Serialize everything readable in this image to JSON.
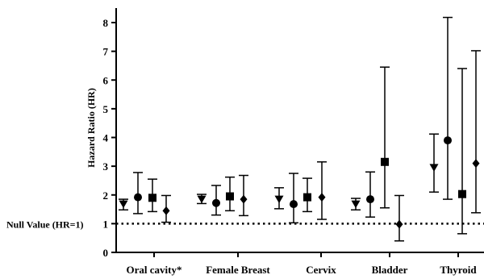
{
  "chart_data": {
    "type": "scatter",
    "ylabel": "Hazard Ratio (HR)",
    "xlabel": "",
    "ylim": [
      0,
      8.5
    ],
    "yticks": [
      0,
      1,
      2,
      3,
      4,
      5,
      6,
      7,
      8
    ],
    "categories": [
      "Oral cavity*",
      "Female Breast",
      "Cervix",
      "Bladder",
      "Thyroid"
    ],
    "reference_line": {
      "value": 1,
      "label": "Null Value (HR=1)",
      "style": "dotted"
    },
    "grid": false,
    "legend": "none",
    "series": [
      {
        "marker": "triangle-down",
        "points": [
          {
            "category": "Oral cavity*",
            "hr": 1.68,
            "low": 1.48,
            "high": 1.85
          },
          {
            "category": "Female Breast",
            "hr": 1.85,
            "low": 1.7,
            "high": 2.02
          },
          {
            "category": "Cervix",
            "hr": 1.85,
            "low": 1.52,
            "high": 2.25
          },
          {
            "category": "Bladder",
            "hr": 1.68,
            "low": 1.48,
            "high": 1.88
          },
          {
            "category": "Thyroid",
            "hr": 2.95,
            "low": 2.1,
            "high": 4.12
          }
        ]
      },
      {
        "marker": "circle",
        "points": [
          {
            "category": "Oral cavity*",
            "hr": 1.92,
            "low": 1.35,
            "high": 2.78
          },
          {
            "category": "Female Breast",
            "hr": 1.72,
            "low": 1.3,
            "high": 2.33
          },
          {
            "category": "Cervix",
            "hr": 1.68,
            "low": 1.03,
            "high": 2.75
          },
          {
            "category": "Bladder",
            "hr": 1.85,
            "low": 1.23,
            "high": 2.8
          },
          {
            "category": "Thyroid",
            "hr": 3.9,
            "low": 1.85,
            "high": 8.18
          }
        ]
      },
      {
        "marker": "square",
        "points": [
          {
            "category": "Oral cavity*",
            "hr": 1.9,
            "low": 1.42,
            "high": 2.55
          },
          {
            "category": "Female Breast",
            "hr": 1.95,
            "low": 1.45,
            "high": 2.62
          },
          {
            "category": "Cervix",
            "hr": 1.92,
            "low": 1.42,
            "high": 2.58
          },
          {
            "category": "Bladder",
            "hr": 3.15,
            "low": 1.55,
            "high": 6.45
          },
          {
            "category": "Thyroid",
            "hr": 2.03,
            "low": 0.65,
            "high": 6.4
          }
        ]
      },
      {
        "marker": "diamond",
        "points": [
          {
            "category": "Oral cavity*",
            "hr": 1.45,
            "low": 1.05,
            "high": 1.98
          },
          {
            "category": "Female Breast",
            "hr": 1.85,
            "low": 1.28,
            "high": 2.68
          },
          {
            "category": "Cervix",
            "hr": 1.92,
            "low": 1.15,
            "high": 3.15
          },
          {
            "category": "Bladder",
            "hr": 0.98,
            "low": 0.4,
            "high": 1.98
          },
          {
            "category": "Thyroid",
            "hr": 3.1,
            "low": 1.38,
            "high": 7.02
          }
        ]
      }
    ]
  }
}
